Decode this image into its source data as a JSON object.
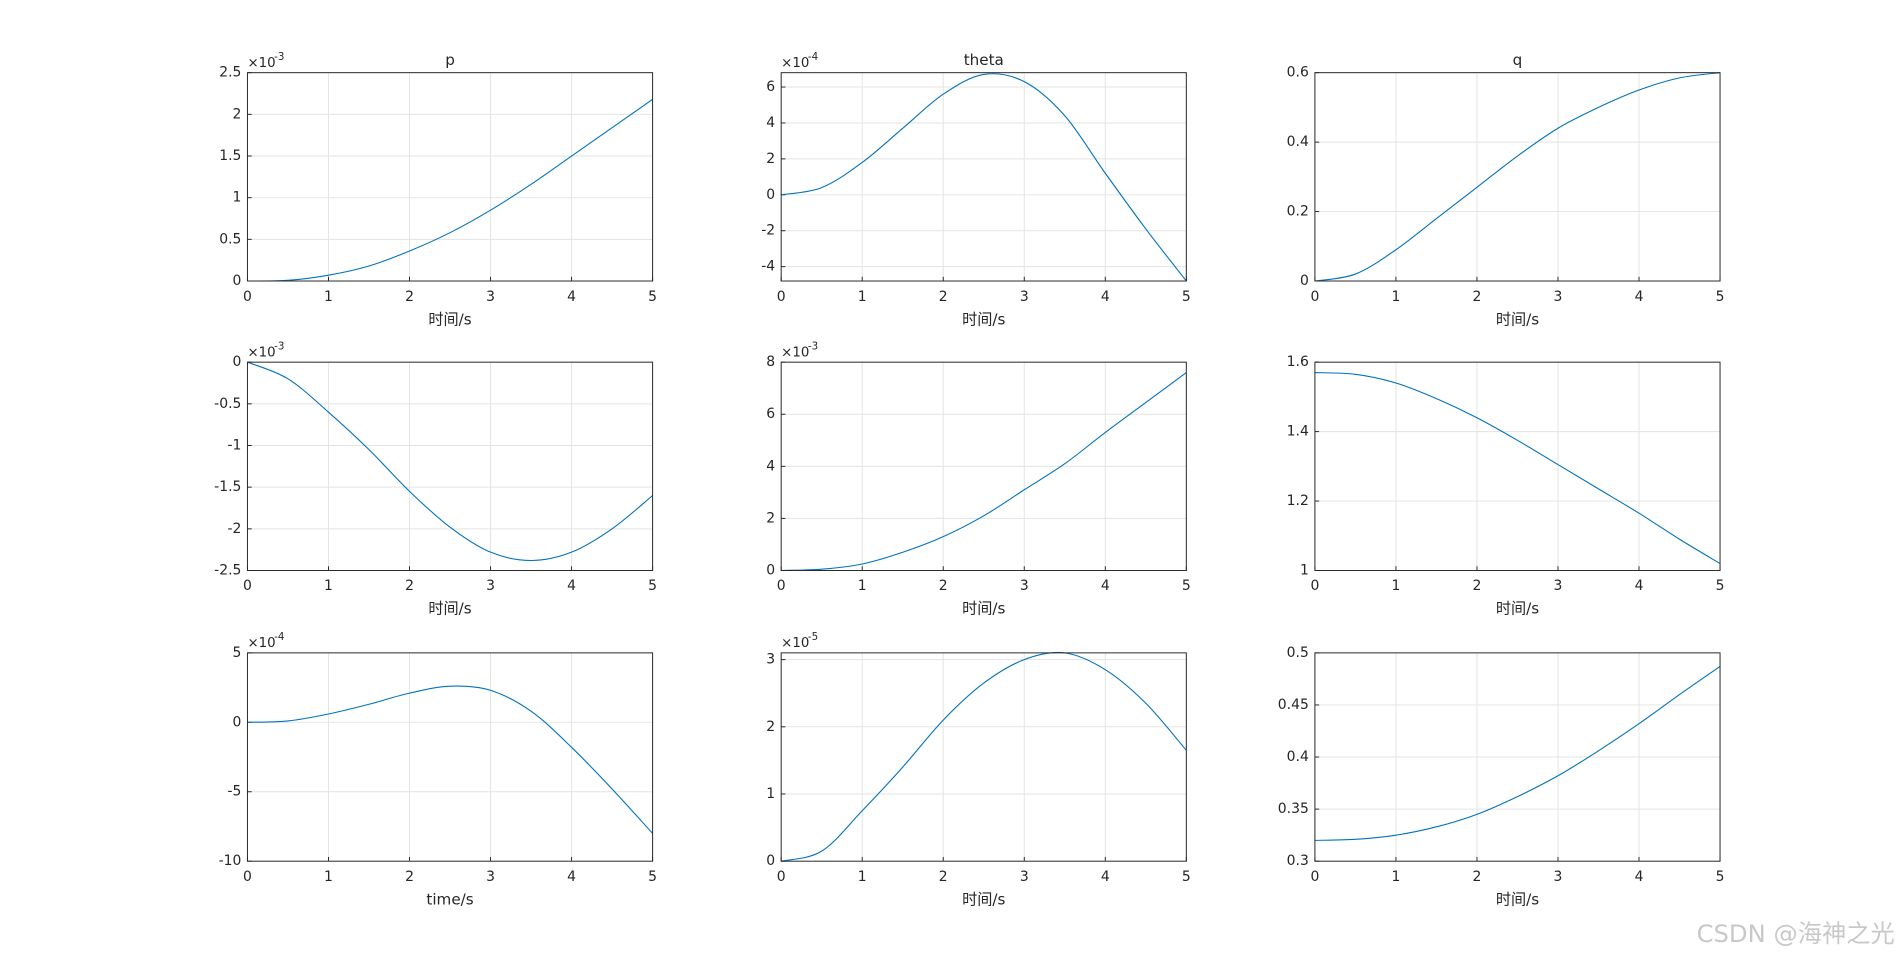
{
  "chart_data": [
    {
      "type": "line",
      "title": "p",
      "xlabel": "时间/s",
      "y_scale_label": "×10",
      "y_scale_power": "-3",
      "color": "#0072bd",
      "grid": true,
      "x": [
        0,
        0.5,
        1,
        1.5,
        2,
        2.5,
        3,
        3.5,
        4,
        4.5,
        5
      ],
      "values": [
        0,
        0.008,
        0.07,
        0.18,
        0.36,
        0.58,
        0.85,
        1.16,
        1.5,
        1.84,
        2.18
      ],
      "xlim": [
        0,
        5
      ],
      "xticks": [
        0,
        1,
        2,
        3,
        4,
        5
      ],
      "ylim": [
        0,
        2.5
      ],
      "yticks": [
        0,
        0.5,
        1,
        1.5,
        2,
        2.5
      ]
    },
    {
      "type": "line",
      "title": "theta",
      "xlabel": "时间/s",
      "y_scale_label": "×10",
      "y_scale_power": "-4",
      "color": "#0072bd",
      "grid": true,
      "x": [
        0,
        0.5,
        1,
        1.5,
        2,
        2.5,
        3,
        3.5,
        4,
        4.5,
        5
      ],
      "values": [
        0,
        0.4,
        1.8,
        3.7,
        5.6,
        6.7,
        6.3,
        4.4,
        1.2,
        -1.9,
        -4.8
      ],
      "xlim": [
        0,
        5
      ],
      "xticks": [
        0,
        1,
        2,
        3,
        4,
        5
      ],
      "ylim": [
        -4.8,
        6.8
      ],
      "yticks": [
        -4,
        -2,
        0,
        2,
        4,
        6
      ]
    },
    {
      "type": "line",
      "title": "q",
      "xlabel": "时间/s",
      "color": "#0072bd",
      "grid": true,
      "x": [
        0,
        0.5,
        1,
        1.5,
        2,
        2.5,
        3,
        3.5,
        4,
        4.5,
        5
      ],
      "values": [
        0,
        0.02,
        0.09,
        0.18,
        0.27,
        0.36,
        0.44,
        0.5,
        0.55,
        0.585,
        0.6
      ],
      "xlim": [
        0,
        5
      ],
      "xticks": [
        0,
        1,
        2,
        3,
        4,
        5
      ],
      "ylim": [
        0,
        0.6
      ],
      "yticks": [
        0,
        0.2,
        0.4,
        0.6
      ]
    },
    {
      "type": "line",
      "xlabel": "时间/s",
      "y_scale_label": "×10",
      "y_scale_power": "-3",
      "color": "#0072bd",
      "grid": true,
      "x": [
        0,
        0.5,
        1,
        1.5,
        2,
        2.5,
        3,
        3.5,
        4,
        4.5,
        5
      ],
      "values": [
        0,
        -0.2,
        -0.6,
        -1.05,
        -1.55,
        -1.98,
        -2.28,
        -2.38,
        -2.28,
        -2.0,
        -1.6
      ],
      "xlim": [
        0,
        5
      ],
      "xticks": [
        0,
        1,
        2,
        3,
        4,
        5
      ],
      "ylim": [
        -2.5,
        0
      ],
      "yticks": [
        -2.5,
        -2,
        -1.5,
        -1,
        -0.5,
        0
      ]
    },
    {
      "type": "line",
      "xlabel": "时间/s",
      "y_scale_label": "×10",
      "y_scale_power": "-3",
      "color": "#0072bd",
      "grid": true,
      "x": [
        0,
        0.5,
        1,
        1.5,
        2,
        2.5,
        3,
        3.5,
        4,
        4.5,
        5
      ],
      "values": [
        0,
        0.05,
        0.25,
        0.7,
        1.3,
        2.1,
        3.1,
        4.1,
        5.3,
        6.45,
        7.6
      ],
      "xlim": [
        0,
        5
      ],
      "xticks": [
        0,
        1,
        2,
        3,
        4,
        5
      ],
      "ylim": [
        0,
        8
      ],
      "yticks": [
        0,
        2,
        4,
        6,
        8
      ]
    },
    {
      "type": "line",
      "xlabel": "时间/s",
      "color": "#0072bd",
      "grid": true,
      "x": [
        0,
        0.5,
        1,
        1.5,
        2,
        2.5,
        3,
        3.5,
        4,
        4.5,
        5
      ],
      "values": [
        1.57,
        1.565,
        1.54,
        1.495,
        1.44,
        1.375,
        1.305,
        1.235,
        1.165,
        1.09,
        1.02
      ],
      "xlim": [
        0,
        5
      ],
      "xticks": [
        0,
        1,
        2,
        3,
        4,
        5
      ],
      "ylim": [
        1,
        1.6
      ],
      "yticks": [
        1,
        1.2,
        1.4,
        1.6
      ]
    },
    {
      "type": "line",
      "xlabel": "time/s",
      "y_scale_label": "×10",
      "y_scale_power": "-4",
      "color": "#0072bd",
      "grid": true,
      "x": [
        0,
        0.5,
        1,
        1.5,
        2,
        2.5,
        3,
        3.5,
        4,
        4.5,
        5
      ],
      "values": [
        0,
        0.1,
        0.6,
        1.3,
        2.1,
        2.6,
        2.3,
        0.8,
        -1.8,
        -4.8,
        -8.0
      ],
      "xlim": [
        0,
        5
      ],
      "xticks": [
        0,
        1,
        2,
        3,
        4,
        5
      ],
      "ylim": [
        -10,
        5
      ],
      "yticks": [
        -10,
        -5,
        0,
        5
      ]
    },
    {
      "type": "line",
      "xlabel": "时间/s",
      "y_scale_label": "×10",
      "y_scale_power": "-5",
      "color": "#0072bd",
      "grid": true,
      "x": [
        0,
        0.5,
        1,
        1.5,
        2,
        2.5,
        3,
        3.5,
        4,
        4.5,
        5
      ],
      "values": [
        0,
        0.15,
        0.75,
        1.4,
        2.1,
        2.65,
        3.0,
        3.1,
        2.85,
        2.35,
        1.65
      ],
      "xlim": [
        0,
        5
      ],
      "xticks": [
        0,
        1,
        2,
        3,
        4,
        5
      ],
      "ylim": [
        0,
        3.1
      ],
      "yticks": [
        0,
        1,
        2,
        3
      ]
    },
    {
      "type": "line",
      "xlabel": "时间/s",
      "color": "#0072bd",
      "grid": true,
      "x": [
        0,
        0.5,
        1,
        1.5,
        2,
        2.5,
        3,
        3.5,
        4,
        4.5,
        5
      ],
      "values": [
        0.32,
        0.321,
        0.325,
        0.333,
        0.345,
        0.362,
        0.382,
        0.406,
        0.432,
        0.46,
        0.487
      ],
      "xlim": [
        0,
        5
      ],
      "xticks": [
        0,
        1,
        2,
        3,
        4,
        5
      ],
      "ylim": [
        0.3,
        0.5
      ],
      "yticks": [
        0.3,
        0.35,
        0.4,
        0.45,
        0.5
      ]
    }
  ],
  "watermark": "CSDN @海神之光"
}
